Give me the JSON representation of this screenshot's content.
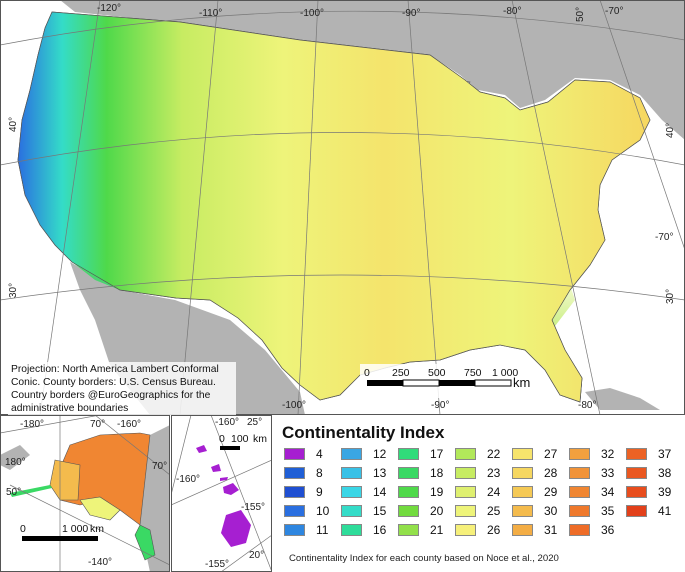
{
  "main_map": {
    "longitude_labels_top": [
      "-120°",
      "-110°",
      "-100°",
      "-90°",
      "-80°",
      "-70°"
    ],
    "longitude_labels_bottom": [
      "-100°",
      "-90°",
      "-80°"
    ],
    "latitude_labels": [
      "50°",
      "40°",
      "40°",
      "30°",
      "30°",
      "-70°"
    ],
    "projection_note": "Projection: North America Lambert Conformal Conic. County borders: U.S. Census Bureau. Country borders @EuroGeographics for the administrative boundaries",
    "scale_ticks": [
      "0",
      "250",
      "500",
      "750",
      "1 000"
    ],
    "scale_unit": "km"
  },
  "alaska_inset": {
    "labels": [
      "-180°",
      "70°",
      "-160°",
      "180°",
      "70°",
      "50°",
      "-140°"
    ],
    "scale_ticks": [
      "0",
      "1 000"
    ],
    "scale_unit": "km"
  },
  "hawaii_inset": {
    "labels": [
      "-160°",
      "25°",
      "-160°",
      "-155°",
      "20°",
      "-155°"
    ],
    "scale_ticks": [
      "0",
      "100"
    ],
    "scale_unit": "km"
  },
  "legend": {
    "title": "Continentality Index",
    "items": [
      {
        "label": "4",
        "color": "#a61fd1"
      },
      {
        "label": "8",
        "color": "#1f5fd6"
      },
      {
        "label": "9",
        "color": "#1f4fd2"
      },
      {
        "label": "10",
        "color": "#2a6fe0"
      },
      {
        "label": "11",
        "color": "#2e86e0"
      },
      {
        "label": "12",
        "color": "#3aa6e3"
      },
      {
        "label": "13",
        "color": "#38c1e6"
      },
      {
        "label": "14",
        "color": "#3ad6e6"
      },
      {
        "label": "15",
        "color": "#34dcc8"
      },
      {
        "label": "16",
        "color": "#2edc9a"
      },
      {
        "label": "17",
        "color": "#30dc7a"
      },
      {
        "label": "18",
        "color": "#3ad964"
      },
      {
        "label": "19",
        "color": "#4fd94a"
      },
      {
        "label": "20",
        "color": "#72db3e"
      },
      {
        "label": "21",
        "color": "#92e04a"
      },
      {
        "label": "22",
        "color": "#b2e85a"
      },
      {
        "label": "23",
        "color": "#c7ec62"
      },
      {
        "label": "24",
        "color": "#dff070"
      },
      {
        "label": "25",
        "color": "#eef47a"
      },
      {
        "label": "26",
        "color": "#f6f07a"
      },
      {
        "label": "27",
        "color": "#f7e46c"
      },
      {
        "label": "28",
        "color": "#f6d760"
      },
      {
        "label": "29",
        "color": "#f5c955"
      },
      {
        "label": "30",
        "color": "#f4bb4d"
      },
      {
        "label": "31",
        "color": "#f3ad45"
      },
      {
        "label": "32",
        "color": "#f2a03e"
      },
      {
        "label": "33",
        "color": "#f19338"
      },
      {
        "label": "34",
        "color": "#f08632"
      },
      {
        "label": "35",
        "color": "#ef792c"
      },
      {
        "label": "36",
        "color": "#ee6c27"
      },
      {
        "label": "37",
        "color": "#ec6224"
      },
      {
        "label": "38",
        "color": "#ea5720"
      },
      {
        "label": "39",
        "color": "#e84d1d"
      },
      {
        "label": "41",
        "color": "#e2401a"
      }
    ]
  },
  "caption": "Continentality Index for each county based on Noce et al., 2020"
}
